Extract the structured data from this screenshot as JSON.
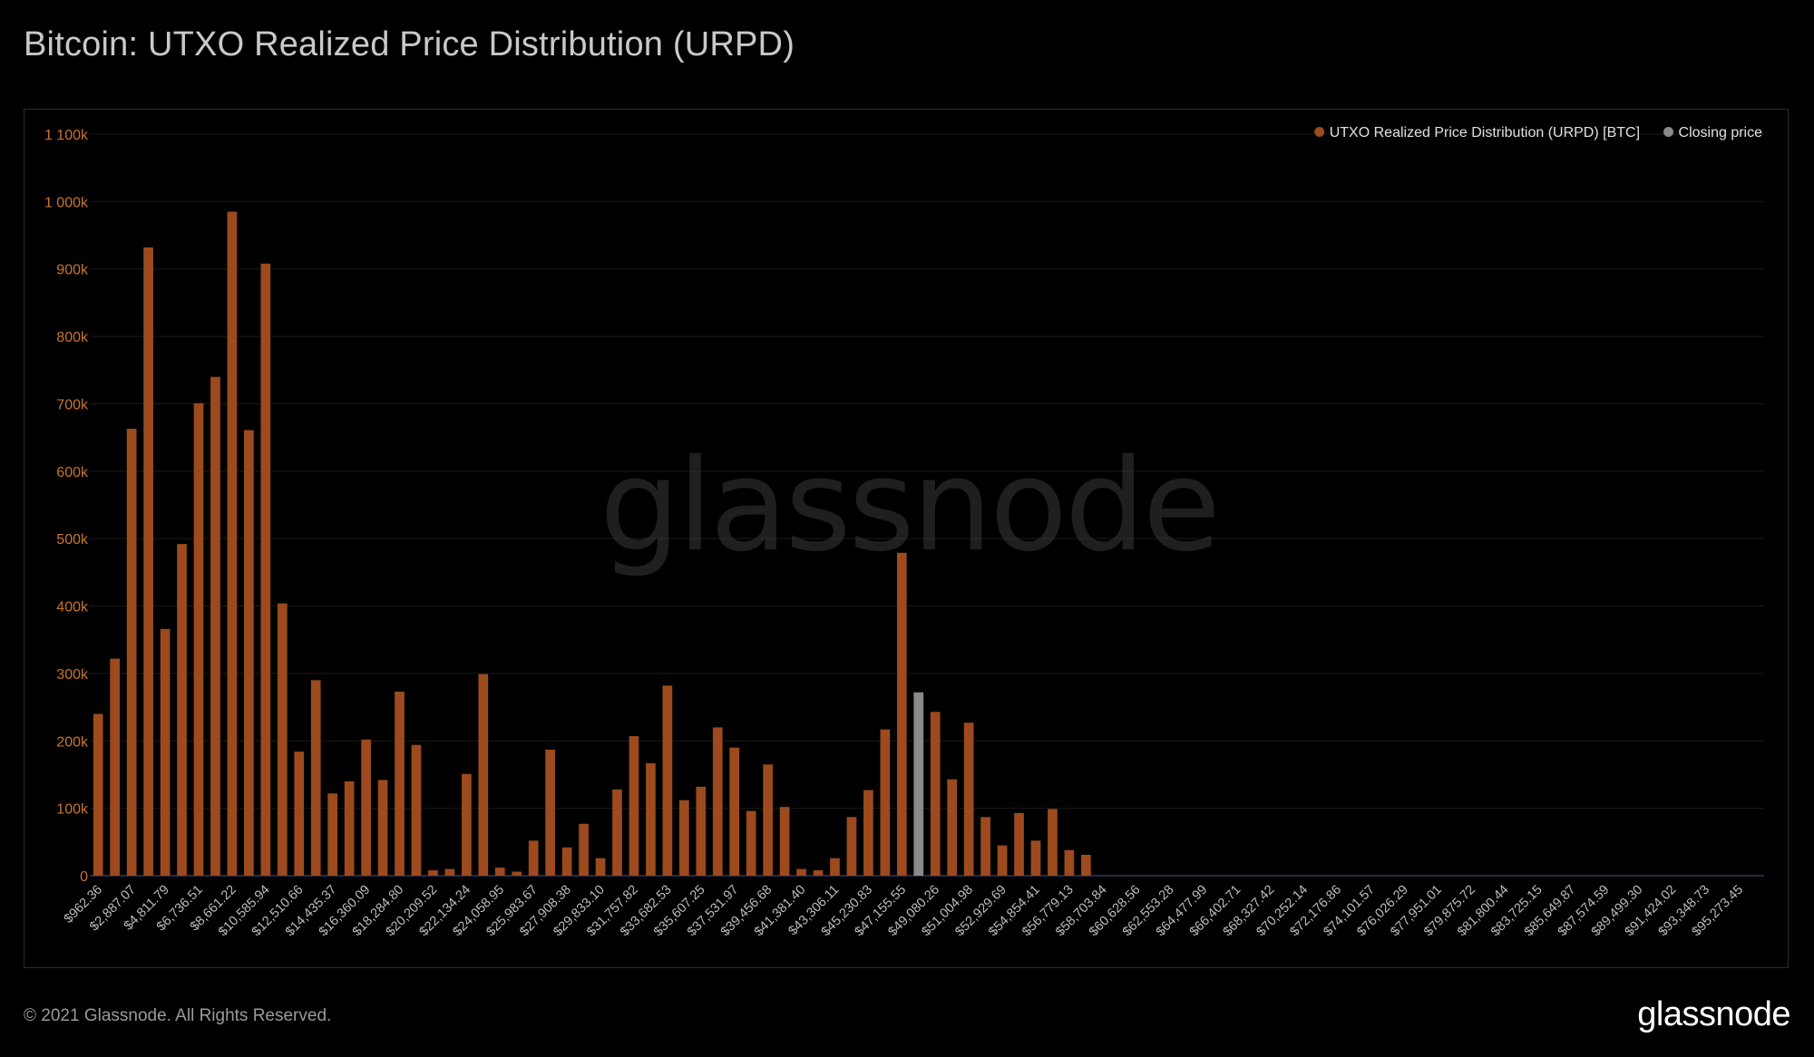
{
  "title": "Bitcoin: UTXO Realized Price Distribution (URPD)",
  "footer": {
    "copyright": "© 2021 Glassnode. All Rights Reserved.",
    "logo": "glassnode"
  },
  "watermark": "glassnode",
  "colors": {
    "bar": "#9c4a1e",
    "closing": "#8a8a8a",
    "axis_label": "#c9742e",
    "tick_label": "#bdbdbd",
    "grid": "#1a1a1a",
    "baseline": "#2a3a5a"
  },
  "chart_data": {
    "type": "bar",
    "title": "Bitcoin: UTXO Realized Price Distribution (URPD)",
    "ylim": [
      0,
      1100000
    ],
    "y_ticks": [
      {
        "value": 0,
        "label": "0"
      },
      {
        "value": 100000,
        "label": "100k"
      },
      {
        "value": 200000,
        "label": "200k"
      },
      {
        "value": 300000,
        "label": "300k"
      },
      {
        "value": 400000,
        "label": "400k"
      },
      {
        "value": 500000,
        "label": "500k"
      },
      {
        "value": 600000,
        "label": "600k"
      },
      {
        "value": 700000,
        "label": "700k"
      },
      {
        "value": 800000,
        "label": "800k"
      },
      {
        "value": 900000,
        "label": "900k"
      },
      {
        "value": 1000000,
        "label": "1 000k"
      },
      {
        "value": 1100000,
        "label": "1 100k"
      }
    ],
    "legend": {
      "placement": "top-right",
      "items": [
        {
          "label": "UTXO Realized Price Distribution (URPD) [BTC]",
          "color": "#9c4a1e"
        },
        {
          "label": "Closing price",
          "color": "#8a8a8a"
        }
      ]
    },
    "x_tick_labels": [
      "$962.36",
      "$2,887.07",
      "$4,811.79",
      "$6,736.51",
      "$8,661.22",
      "$10,585.94",
      "$12,510.66",
      "$14,435.37",
      "$16,360.09",
      "$18,284.80",
      "$20,209.52",
      "$22,134.24",
      "$24,058.95",
      "$25,983.67",
      "$27,908.38",
      "$29,833.10",
      "$31,757.82",
      "$33,682.53",
      "$35,607.25",
      "$37,531.97",
      "$39,456.68",
      "$41,381.40",
      "$43,306.11",
      "$45,230.83",
      "$47,155.55",
      "$49,080.26",
      "$51,004.98",
      "$52,929.69",
      "$54,854.41",
      "$56,779.13",
      "$58,703.84",
      "$60,628.56",
      "$62,553.28",
      "$64,477.99",
      "$66,402.71",
      "$68,327.42",
      "$70,252.14",
      "$72,176.86",
      "$74,101.57",
      "$76,026.29",
      "$77,951.01",
      "$79,875.72",
      "$81,800.44",
      "$83,725.15",
      "$85,649.87",
      "$87,574.59",
      "$89,499.30",
      "$91,424.02",
      "$93,348.73",
      "$95,273.45"
    ],
    "bin_count": 100,
    "closing_bin_index": 49,
    "values": [
      240000,
      322000,
      663000,
      932000,
      366000,
      492000,
      701000,
      740000,
      985000,
      661000,
      908000,
      404000,
      184000,
      290000,
      122000,
      140000,
      202000,
      142000,
      273000,
      194000,
      8000,
      10000,
      151000,
      299000,
      12000,
      6000,
      52000,
      187000,
      42000,
      77000,
      26000,
      128000,
      207000,
      167000,
      282000,
      112000,
      132000,
      220000,
      190000,
      96000,
      165000,
      102000,
      10000,
      8000,
      26000,
      87000,
      127000,
      217000,
      479000,
      272000,
      243000,
      143000,
      227000,
      87000,
      45000,
      93000,
      52000,
      99000,
      38000,
      31000,
      0,
      0,
      0,
      0,
      0,
      0,
      0,
      0,
      0,
      0,
      0,
      0,
      0,
      0,
      0,
      0,
      0,
      0,
      0,
      0,
      0,
      0,
      0,
      0,
      0,
      0,
      0,
      0,
      0,
      0,
      0,
      0,
      0,
      0,
      0,
      0,
      0,
      0,
      0,
      0
    ]
  }
}
